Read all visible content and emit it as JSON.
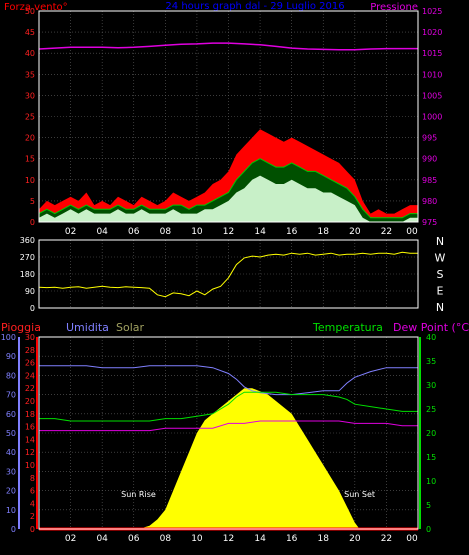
{
  "colors": {
    "background": "#000000",
    "frame": "#ffffff",
    "grid": "#606060",
    "wind_max": "#ff0000",
    "wind_avg": "#00c800",
    "wind_min": "#ffffff",
    "pressure": "#e000e0",
    "direction": "#ffff00",
    "humidity": "#8080ff",
    "solar": "#ffff00",
    "temperature": "#00e000",
    "dew_point": "#e000e0",
    "rain": "#ff0000",
    "rain_axis": "#ff0000",
    "humidity_axis": "#8080ff",
    "temp_axis": "#00e000",
    "title": "#0000ff"
  },
  "hour_ticks": [
    "02",
    "04",
    "06",
    "08",
    "10",
    "12",
    "14",
    "16",
    "18",
    "20",
    "22",
    "00"
  ],
  "chart_data": [
    {
      "type": "line",
      "panel": "wind",
      "title": "24 hours graph dal - 29 Luglio 2016",
      "ylabel_left": "Forza vento°",
      "ylabel_right": "Pressione",
      "left_ticks": [
        "0",
        "5",
        "10",
        "15",
        "20",
        "25",
        "30",
        "35",
        "40",
        "45",
        "50"
      ],
      "right_ticks": [
        "975",
        "980",
        "985",
        "990",
        "995",
        "1000",
        "1005",
        "1010",
        "1015",
        "1020",
        "1025"
      ],
      "left_range": [
        0,
        50
      ],
      "right_range": [
        975,
        1025
      ],
      "x_range": [
        0,
        24
      ],
      "grid": true,
      "series": [
        {
          "key": "pressure",
          "axis": "right",
          "x": [
            0,
            1,
            2,
            3,
            4,
            5,
            6,
            7,
            8,
            9,
            10,
            11,
            12,
            13,
            14,
            15,
            16,
            17,
            18,
            19,
            20,
            21,
            22,
            23,
            24
          ],
          "values": [
            1016.0,
            1016.2,
            1016.4,
            1016.4,
            1016.4,
            1016.3,
            1016.4,
            1016.6,
            1016.9,
            1017.1,
            1017.2,
            1017.4,
            1017.4,
            1017.2,
            1017.0,
            1016.6,
            1016.2,
            1016.0,
            1015.9,
            1015.8,
            1015.8,
            1016.0,
            1016.1,
            1016.1,
            1016.1
          ]
        },
        {
          "key": "wind_max",
          "axis": "left",
          "x": [
            0,
            0.5,
            1,
            1.5,
            2,
            2.5,
            3,
            3.5,
            4,
            4.5,
            5,
            5.5,
            6,
            6.5,
            7,
            7.5,
            8,
            8.5,
            9,
            9.5,
            10,
            10.5,
            11,
            11.5,
            12,
            12.5,
            13,
            13.5,
            14,
            14.5,
            15,
            15.5,
            16,
            16.5,
            17,
            17.5,
            18,
            18.5,
            19,
            19.5,
            20,
            20.5,
            21,
            21.5,
            22,
            22.5,
            23,
            23.5,
            24
          ],
          "values": [
            3,
            5,
            4,
            5,
            6,
            5,
            7,
            4,
            5,
            4,
            6,
            5,
            4,
            6,
            5,
            4,
            5,
            7,
            6,
            5,
            6,
            7,
            9,
            10,
            12,
            16,
            18,
            20,
            22,
            21,
            20,
            19,
            20,
            19,
            18,
            17,
            16,
            15,
            14,
            12,
            10,
            5,
            2,
            3,
            2,
            2,
            3,
            4,
            4
          ]
        },
        {
          "key": "wind_avg",
          "axis": "left",
          "x": [
            0,
            0.5,
            1,
            1.5,
            2,
            2.5,
            3,
            3.5,
            4,
            4.5,
            5,
            5.5,
            6,
            6.5,
            7,
            7.5,
            8,
            8.5,
            9,
            9.5,
            10,
            10.5,
            11,
            11.5,
            12,
            12.5,
            13,
            13.5,
            14,
            14.5,
            15,
            15.5,
            16,
            16.5,
            17,
            17.5,
            18,
            18.5,
            19,
            19.5,
            20,
            20.5,
            21,
            21.5,
            22,
            22.5,
            23,
            23.5,
            24
          ],
          "values": [
            2,
            3,
            2,
            3,
            4,
            3,
            4,
            3,
            3,
            3,
            4,
            3,
            3,
            4,
            3,
            3,
            3,
            4,
            4,
            3,
            4,
            4,
            5,
            6,
            7,
            10,
            12,
            14,
            15,
            14,
            13,
            13,
            14,
            13,
            12,
            12,
            11,
            10,
            9,
            8,
            6,
            3,
            1,
            1,
            1,
            1,
            1,
            2,
            2
          ]
        },
        {
          "key": "wind_min",
          "axis": "left",
          "x": [
            0,
            0.5,
            1,
            1.5,
            2,
            2.5,
            3,
            3.5,
            4,
            4.5,
            5,
            5.5,
            6,
            6.5,
            7,
            7.5,
            8,
            8.5,
            9,
            9.5,
            10,
            10.5,
            11,
            11.5,
            12,
            12.5,
            13,
            13.5,
            14,
            14.5,
            15,
            15.5,
            16,
            16.5,
            17,
            17.5,
            18,
            18.5,
            19,
            19.5,
            20,
            20.5,
            21,
            21.5,
            22,
            22.5,
            23,
            23.5,
            24
          ],
          "values": [
            1,
            2,
            1,
            2,
            3,
            2,
            3,
            2,
            2,
            2,
            3,
            2,
            2,
            3,
            2,
            2,
            2,
            3,
            2,
            2,
            2,
            3,
            3,
            4,
            5,
            7,
            8,
            10,
            11,
            10,
            9,
            9,
            10,
            9,
            8,
            8,
            7,
            7,
            6,
            5,
            4,
            1,
            0,
            0,
            0,
            0,
            0,
            1,
            1
          ]
        }
      ]
    },
    {
      "type": "line",
      "panel": "direction",
      "left_ticks": [
        "0",
        "90",
        "180",
        "270",
        "360"
      ],
      "right_labels": [
        "N",
        "W",
        "S",
        "E",
        "N"
      ],
      "left_range": [
        0,
        360
      ],
      "x_range": [
        0,
        24
      ],
      "grid": true,
      "series": [
        {
          "key": "direction",
          "axis": "left",
          "x": [
            0,
            0.5,
            1,
            1.5,
            2,
            2.5,
            3,
            3.5,
            4,
            4.5,
            5,
            5.5,
            6,
            6.5,
            7,
            7.5,
            8,
            8.5,
            9,
            9.5,
            10,
            10.5,
            11,
            11.5,
            12,
            12.5,
            13,
            13.5,
            14,
            14.5,
            15,
            15.5,
            16,
            16.5,
            17,
            17.5,
            18,
            18.5,
            19,
            19.5,
            20,
            20.5,
            21,
            21.5,
            22,
            22.5,
            23,
            23.5,
            24
          ],
          "values": [
            110,
            108,
            110,
            105,
            110,
            112,
            105,
            110,
            115,
            110,
            108,
            112,
            110,
            108,
            105,
            70,
            60,
            80,
            75,
            65,
            90,
            70,
            100,
            115,
            160,
            230,
            265,
            275,
            270,
            280,
            285,
            280,
            290,
            285,
            290,
            280,
            285,
            290,
            280,
            285,
            285,
            290,
            285,
            290,
            290,
            285,
            295,
            290,
            290
          ]
        }
      ]
    },
    {
      "type": "area",
      "panel": "weather",
      "ylabel_rain": "Pioggia",
      "ylabel_humidity": "Umidita",
      "ylabel_solar": "Solar",
      "ylabel_temp": "Temperatura",
      "ylabel_dew": "Dew Point (°C)",
      "humidity_ticks": [
        "0",
        "10",
        "20",
        "30",
        "40",
        "50",
        "60",
        "70",
        "80",
        "90",
        "100"
      ],
      "rain_ticks": [
        "0",
        "2",
        "4",
        "6",
        "8",
        "10",
        "12",
        "14",
        "16",
        "18",
        "20",
        "22",
        "24",
        "26",
        "28",
        "30"
      ],
      "temp_ticks": [
        "0",
        "5",
        "10",
        "15",
        "20",
        "25",
        "30",
        "35",
        "40"
      ],
      "humidity_range": [
        0,
        100
      ],
      "rain_range": [
        0,
        30
      ],
      "temp_range": [
        0,
        40
      ],
      "x_range": [
        0,
        24
      ],
      "grid": true,
      "annotations": [
        {
          "text": "Sun Rise",
          "x": 6.3
        },
        {
          "text": "Sun Set",
          "x": 20.3
        }
      ],
      "series": [
        {
          "key": "humidity",
          "axis": "humidity",
          "x": [
            0,
            1,
            2,
            3,
            4,
            5,
            6,
            7,
            8,
            9,
            10,
            11,
            12,
            12.5,
            13,
            13.5,
            14,
            15,
            16,
            17,
            18,
            19,
            19.5,
            20,
            21,
            22,
            23,
            24
          ],
          "values": [
            85,
            85,
            85,
            85,
            84,
            84,
            84,
            85,
            85,
            85,
            85,
            84,
            81,
            78,
            74,
            72,
            71,
            70,
            70,
            71,
            72,
            72,
            76,
            79,
            82,
            84,
            84,
            84
          ]
        },
        {
          "key": "temperature",
          "axis": "temp",
          "x": [
            0,
            1,
            2,
            3,
            4,
            5,
            6,
            7,
            8,
            9,
            10,
            11,
            12,
            12.5,
            13,
            13.5,
            14,
            15,
            16,
            17,
            18,
            19,
            19.5,
            20,
            21,
            22,
            23,
            24
          ],
          "values": [
            23,
            23,
            22.5,
            22.5,
            22.5,
            22.5,
            22.5,
            22.5,
            23,
            23,
            23.5,
            24,
            26,
            27.5,
            28.5,
            28.5,
            28.5,
            28.5,
            28,
            28,
            28,
            27.5,
            27,
            26,
            25.5,
            25,
            24.5,
            24.5
          ]
        },
        {
          "key": "dew_point",
          "axis": "temp",
          "x": [
            0,
            1,
            2,
            3,
            4,
            5,
            6,
            7,
            8,
            9,
            10,
            11,
            12,
            13,
            14,
            15,
            16,
            17,
            18,
            19,
            20,
            21,
            22,
            23,
            24
          ],
          "values": [
            20.5,
            20.5,
            20.5,
            20.5,
            20.5,
            20.5,
            20.5,
            20.5,
            21,
            21,
            21,
            21,
            22,
            22,
            22.5,
            22.5,
            22.5,
            22.5,
            22.5,
            22.5,
            22,
            22,
            22,
            21.5,
            21.5
          ]
        },
        {
          "key": "solar",
          "axis": "rain_scale",
          "x": [
            0,
            6.3,
            7,
            7.5,
            8,
            8.5,
            9,
            9.5,
            10,
            10.5,
            11,
            11.5,
            12,
            12.5,
            13,
            13.5,
            14,
            14.5,
            15,
            15.5,
            16,
            16.5,
            17,
            17.5,
            18,
            18.5,
            19,
            19.5,
            20,
            20.3,
            24
          ],
          "values": [
            0,
            0,
            0.5,
            1.5,
            3,
            6,
            9,
            12,
            15,
            17,
            18,
            19,
            20,
            21,
            22,
            22,
            21.5,
            21,
            20,
            19,
            18,
            16,
            14,
            12,
            10,
            8,
            6,
            3.5,
            1,
            0,
            0
          ]
        },
        {
          "key": "rain",
          "axis": "rain",
          "x": [
            0,
            24
          ],
          "values": [
            0,
            0
          ]
        }
      ]
    }
  ]
}
